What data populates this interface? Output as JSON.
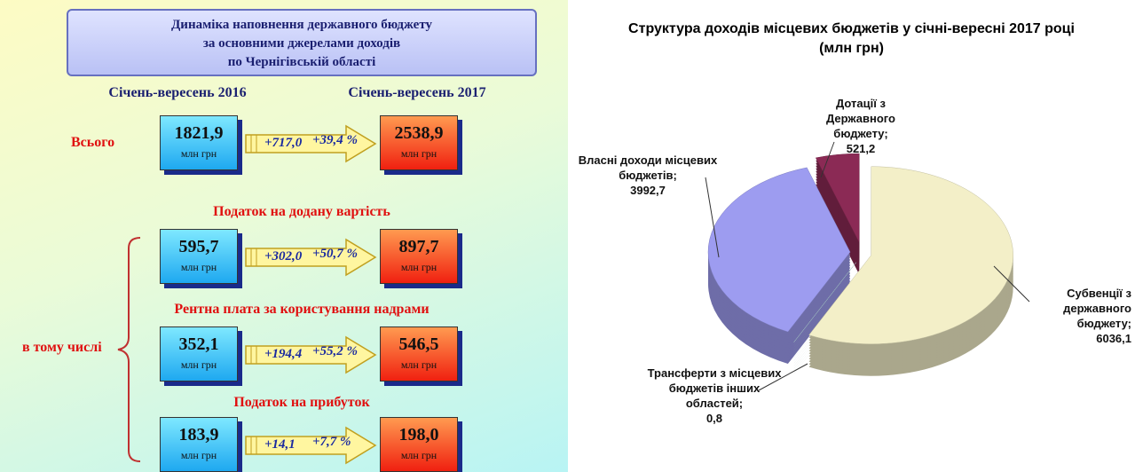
{
  "infographic": {
    "title": [
      "Динаміка наповнення державного бюджету",
      "за основними джерелами доходів",
      "по Чернігівській області"
    ],
    "period_2016": "Січень-вересень 2016",
    "period_2017": "Січень-вересень 2017",
    "unit": "млн грн",
    "including_label": "в тому числі",
    "rows": [
      {
        "label": "Всього",
        "v2016": "1821,9",
        "change": "+717,0",
        "change_pct": "+39,4 %",
        "v2017": "2538,9"
      },
      {
        "label": "Податок на додану вартість",
        "v2016": "595,7",
        "change": "+302,0",
        "change_pct": "+50,7 %",
        "v2017": "897,7"
      },
      {
        "label": "Рентна плата за користування надрами",
        "v2016": "352,1",
        "change": "+194,4",
        "change_pct": "+55,2 %",
        "v2017": "546,5"
      },
      {
        "label": "Податок на прибуток",
        "v2016": "183,9",
        "change": "+14,1",
        "change_pct": "+7,7 %",
        "v2017": "198,0"
      }
    ]
  },
  "chart_data": {
    "type": "pie",
    "title": "Структура доходів місцевих бюджетів у січні-вересні 2017 році",
    "subtitle": "(млн грн)",
    "categories": [
      "Дотації з Державного бюджету;",
      "Субвенції з державного бюджету;",
      "Трансферти з місцевих бюджетів інших областей;",
      "Власні доходи місцевих бюджетів;"
    ],
    "values": [
      521.2,
      6036.1,
      0.8,
      3992.7
    ],
    "value_labels": [
      "521,2",
      "6036,1",
      "0,8",
      "3992,7"
    ],
    "colors": [
      "#8b2a55",
      "#f3efc8",
      "#c7eeee",
      "#9d9cf0"
    ]
  }
}
